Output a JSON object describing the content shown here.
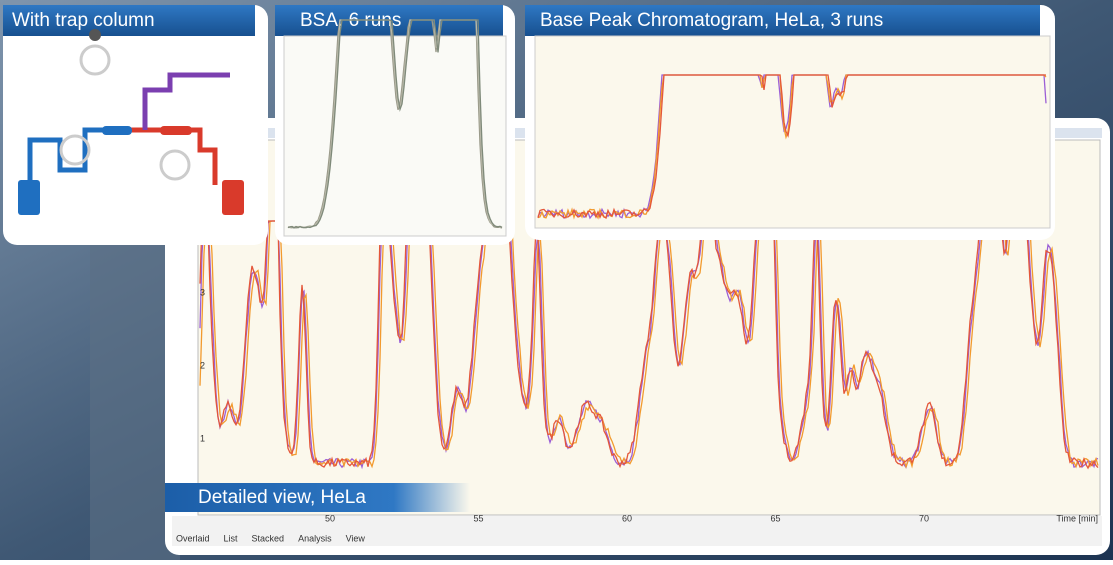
{
  "panels": [
    {
      "title": "With trap column"
    },
    {
      "title": "BSA, 6 runs"
    },
    {
      "title": "Base Peak Chromatogram, HeLa, 3 runs"
    }
  ],
  "detail": {
    "title": "Detailed view, HeLa",
    "x_ticks": [
      "50",
      "55",
      "60",
      "65",
      "70"
    ],
    "x_label": "Time [min]",
    "y_ticks": [
      "3",
      "2",
      "1"
    ],
    "tabs": [
      "Overlaid",
      "List",
      "Stacked",
      "Analysis",
      "View"
    ]
  }
}
